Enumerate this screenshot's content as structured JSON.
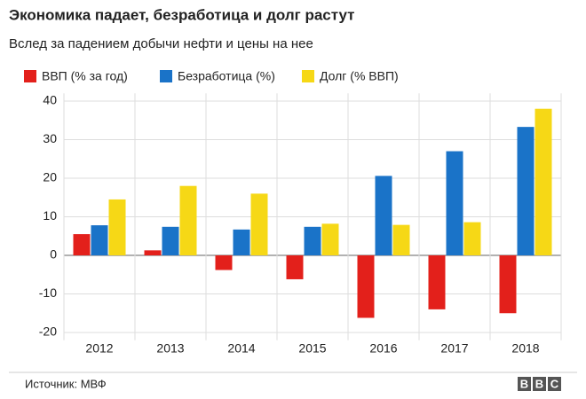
{
  "chart_data": {
    "type": "bar",
    "title": "Экономика падает, безработица и долг растут",
    "subtitle": "Вслед за падением добычи нефти и цены на нее",
    "categories": [
      "2012",
      "2013",
      "2014",
      "2015",
      "2016",
      "2017",
      "2018"
    ],
    "series": [
      {
        "name": "ВВП (% за год)",
        "color": "#e3201b",
        "values": [
          5.5,
          1.3,
          -3.8,
          -6.2,
          -16.2,
          -14,
          -15
        ]
      },
      {
        "name": "Безработица (%)",
        "color": "#1a73c8",
        "values": [
          7.8,
          7.4,
          6.7,
          7.4,
          20.6,
          27,
          33.3
        ]
      },
      {
        "name": "Долг (% ВВП)",
        "color": "#f6d816",
        "values": [
          14.5,
          18,
          16,
          8.2,
          7.9,
          8.6,
          38
        ]
      }
    ],
    "ylim": [
      -22,
      42
    ],
    "yticks": [
      -20,
      -10,
      0,
      10,
      20,
      30,
      40
    ],
    "grid": true,
    "source": "Источник: МВФ",
    "logo": [
      "B",
      "B",
      "C"
    ]
  }
}
